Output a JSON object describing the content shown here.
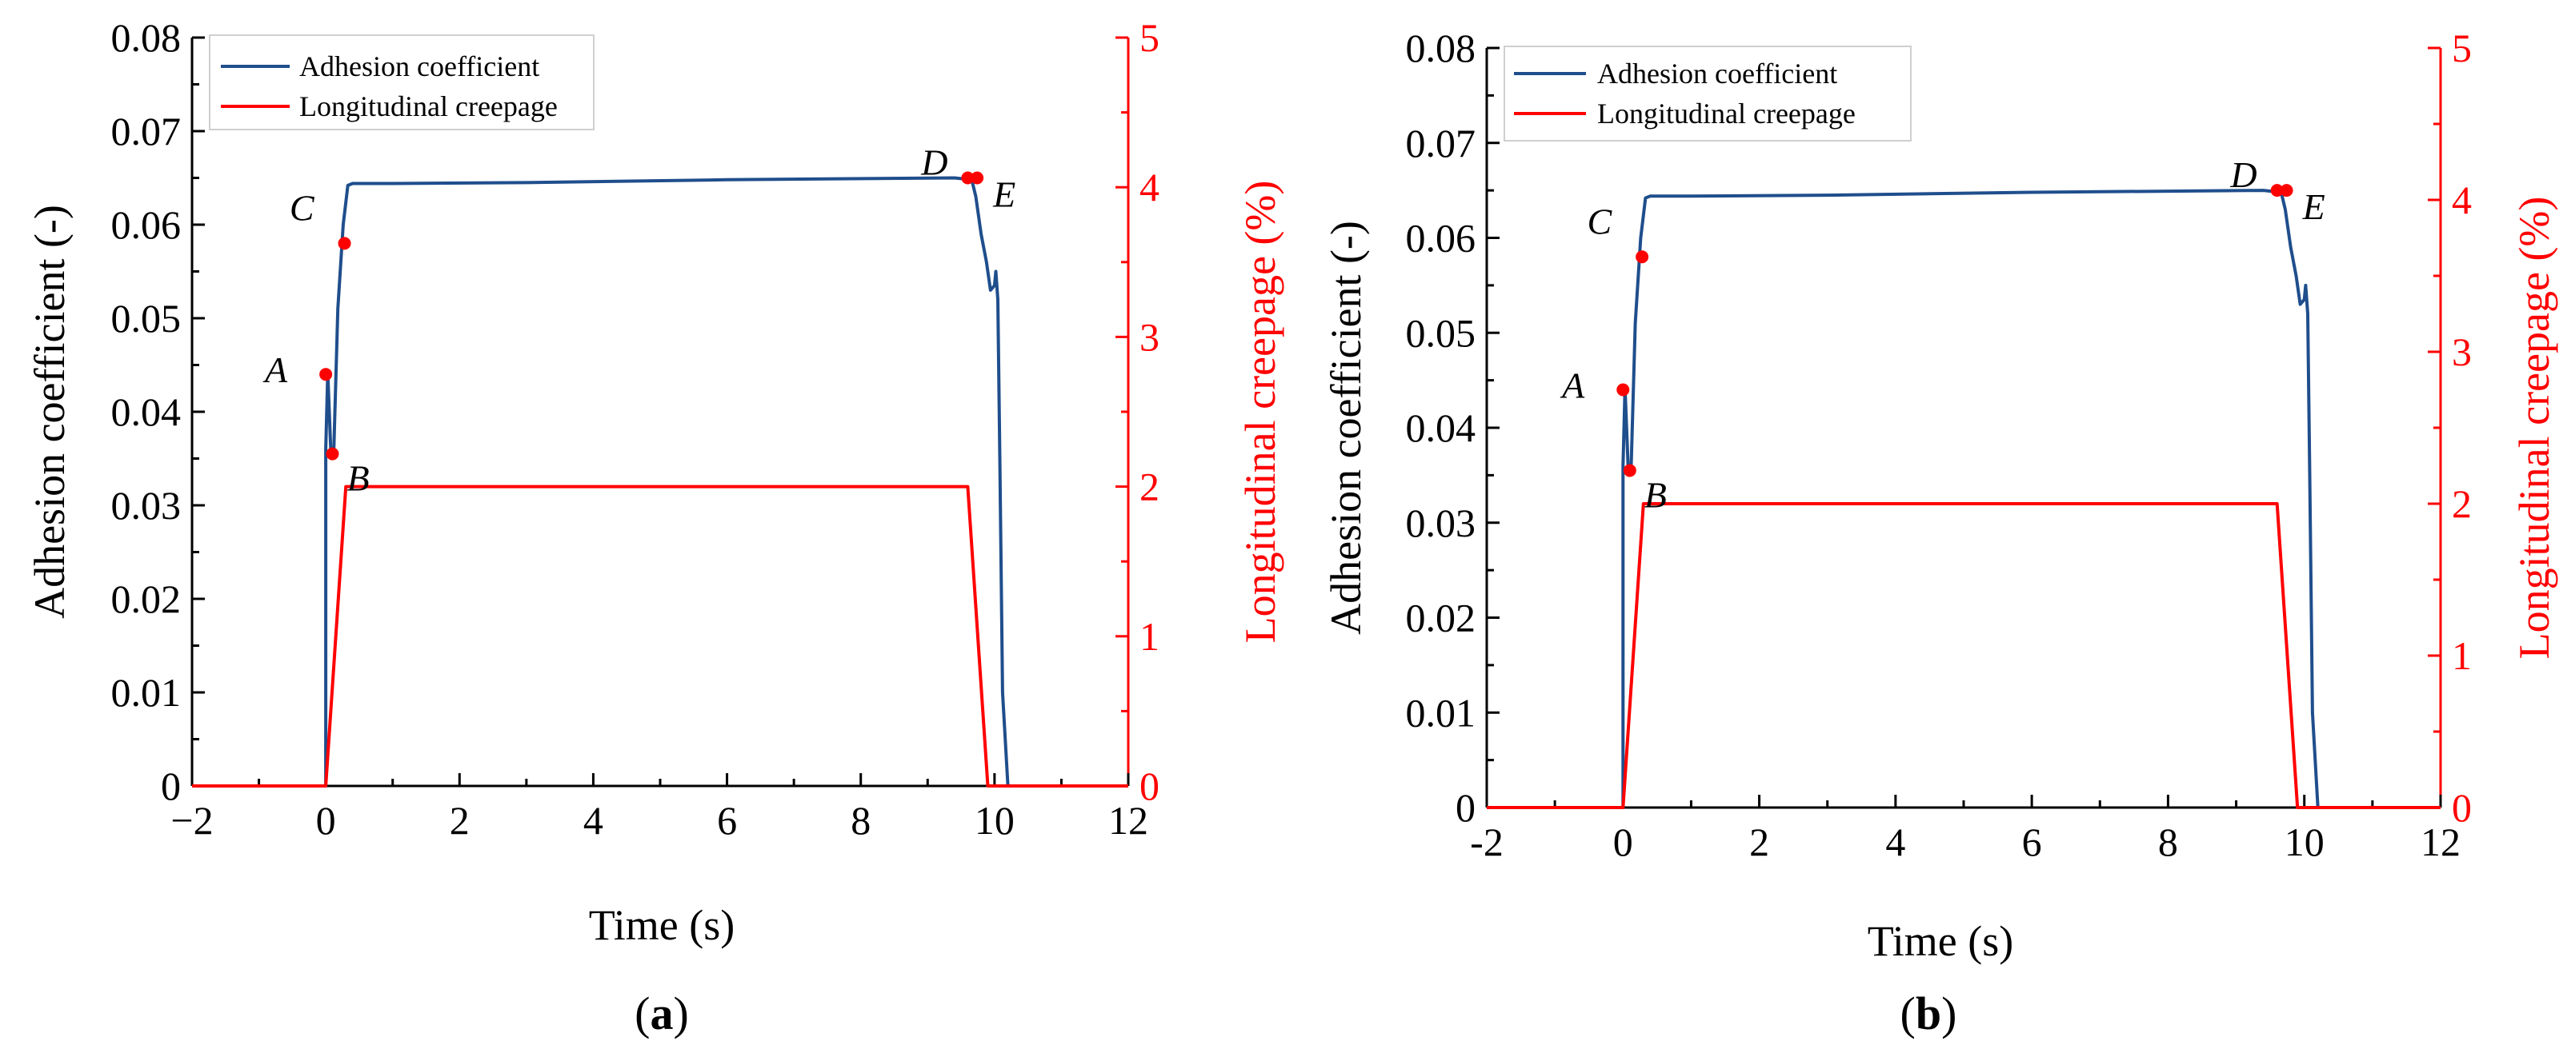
{
  "figure": {
    "panels": [
      {
        "label_open": "(",
        "label_letter": "a",
        "label_close": ")"
      },
      {
        "label_open": "(",
        "label_letter": "b",
        "label_close": ")"
      }
    ]
  },
  "colors": {
    "adhesion": "#1f4e8c",
    "creepage": "#ff0000",
    "marker": "#ff0000",
    "axis": "#000000"
  },
  "chart_data": [
    {
      "type": "line",
      "panel": "a",
      "xlabel": "Time (s)",
      "ylabel": "Adhesion coefficient (-)",
      "y2label": "Longitudinal creepage (%)",
      "xlim": [
        -2,
        12
      ],
      "ylim": [
        0,
        0.08
      ],
      "y2lim": [
        0,
        5
      ],
      "x_ticks": [
        "−2",
        "0",
        "2",
        "4",
        "6",
        "8",
        "10",
        "12"
      ],
      "x_tick_values": [
        -2,
        0,
        2,
        4,
        6,
        8,
        10,
        12
      ],
      "y_ticks": [
        "0",
        "0.01",
        "0.02",
        "0.03",
        "0.04",
        "0.05",
        "0.06",
        "0.07",
        "0.08"
      ],
      "y_tick_values": [
        0,
        0.01,
        0.02,
        0.03,
        0.04,
        0.05,
        0.06,
        0.07,
        0.08
      ],
      "y2_ticks": [
        "0",
        "1",
        "2",
        "3",
        "4",
        "5"
      ],
      "y2_tick_values": [
        0,
        1,
        2,
        3,
        4,
        5
      ],
      "legend": {
        "position": "top-left",
        "entries": [
          "Adhesion coefficient",
          "Longitudinal creepage"
        ]
      },
      "grid": false,
      "series": [
        {
          "name": "Adhesion coefficient",
          "axis": "left",
          "x": [
            -2,
            0,
            0.0,
            0.03,
            0.08,
            0.12,
            0.18,
            0.26,
            0.33,
            0.4,
            1.0,
            3.0,
            6.0,
            9.4,
            9.66,
            9.72,
            9.8,
            9.88,
            9.94,
            10.0,
            10.02,
            10.05,
            10.08,
            10.12,
            10.2,
            12
          ],
          "y": [
            0,
            0,
            0.036,
            0.0442,
            0.035,
            0.036,
            0.051,
            0.06,
            0.0642,
            0.0644,
            0.0644,
            0.0645,
            0.0648,
            0.065,
            0.0648,
            0.063,
            0.059,
            0.056,
            0.053,
            0.0535,
            0.055,
            0.052,
            0.035,
            0.01,
            0,
            0
          ]
        },
        {
          "name": "Longitudinal creepage",
          "axis": "right",
          "x": [
            -2,
            0,
            0.3,
            9.6,
            9.9,
            12
          ],
          "y": [
            0,
            0,
            2,
            2,
            0,
            0
          ]
        }
      ],
      "markers": [
        {
          "label": "A",
          "x": 0.0,
          "y": 0.044
        },
        {
          "label": "B",
          "x": 0.1,
          "y": 0.0355
        },
        {
          "label": "C",
          "x": 0.28,
          "y": 0.058
        },
        {
          "label": "D",
          "x": 9.6,
          "y": 0.065
        },
        {
          "label": "E",
          "x": 9.74,
          "y": 0.065
        }
      ]
    },
    {
      "type": "line",
      "panel": "b",
      "xlabel": "Time (s)",
      "ylabel": "Adhesion coefficient (-)",
      "y2label": "Longitudinal creepage (%)",
      "xlim": [
        -2,
        12
      ],
      "ylim": [
        0,
        0.08
      ],
      "y2lim": [
        0,
        5
      ],
      "x_ticks": [
        "-2",
        "0",
        "2",
        "4",
        "6",
        "8",
        "10",
        "12"
      ],
      "x_tick_values": [
        -2,
        0,
        2,
        4,
        6,
        8,
        10,
        12
      ],
      "y_ticks": [
        "0",
        "0.01",
        "0.02",
        "0.03",
        "0.04",
        "0.05",
        "0.06",
        "0.07",
        "0.08"
      ],
      "y_tick_values": [
        0,
        0.01,
        0.02,
        0.03,
        0.04,
        0.05,
        0.06,
        0.07,
        0.08
      ],
      "y2_ticks": [
        "0",
        "1",
        "2",
        "3",
        "4",
        "5"
      ],
      "y2_tick_values": [
        0,
        1,
        2,
        3,
        4,
        5
      ],
      "legend": {
        "position": "top-left",
        "entries": [
          "Adhesion coefficient",
          "Longitudinal creepage"
        ]
      },
      "grid": false,
      "series": [
        {
          "name": "Adhesion coefficient",
          "axis": "left",
          "x": [
            -2,
            0,
            0.0,
            0.03,
            0.08,
            0.12,
            0.18,
            0.26,
            0.33,
            0.4,
            1.0,
            3.0,
            6.0,
            9.4,
            9.66,
            9.72,
            9.8,
            9.88,
            9.94,
            10.0,
            10.02,
            10.05,
            10.08,
            10.12,
            10.2,
            12
          ],
          "y": [
            0,
            0,
            0.036,
            0.0442,
            0.035,
            0.036,
            0.051,
            0.06,
            0.0642,
            0.0644,
            0.0644,
            0.0645,
            0.0648,
            0.065,
            0.0648,
            0.063,
            0.059,
            0.056,
            0.053,
            0.0535,
            0.055,
            0.052,
            0.035,
            0.01,
            0,
            0
          ]
        },
        {
          "name": "Longitudinal creepage",
          "axis": "right",
          "x": [
            -2,
            0,
            0.3,
            9.6,
            9.9,
            12
          ],
          "y": [
            0,
            0,
            2,
            2,
            0,
            0
          ]
        }
      ],
      "markers": [
        {
          "label": "A",
          "x": 0.0,
          "y": 0.044
        },
        {
          "label": "B",
          "x": 0.1,
          "y": 0.0355
        },
        {
          "label": "C",
          "x": 0.28,
          "y": 0.058
        },
        {
          "label": "D",
          "x": 9.6,
          "y": 0.065
        },
        {
          "label": "E",
          "x": 9.74,
          "y": 0.065
        }
      ]
    }
  ]
}
